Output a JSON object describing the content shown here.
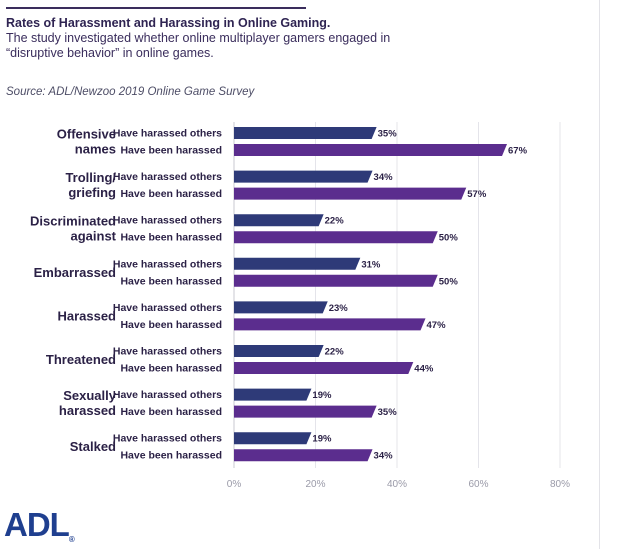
{
  "header": {
    "title": "Rates of Harassment and Harassing in Online Gaming.",
    "subtitle": "The study investigated whether online multiplayer gamers engaged in “disruptive behavior” in online games.",
    "source": "Source: ADL/Newzoo 2019 Online Game Survey"
  },
  "logo": {
    "text": "ADL",
    "reg": "®"
  },
  "colors": {
    "harassed_others": "#2e3a78",
    "been_harassed": "#5b2d8e",
    "grid": "#e4e4ea",
    "axis": "#c9c9d2"
  },
  "chart_data": {
    "type": "bar",
    "orientation": "horizontal",
    "title": "Rates of Harassment and Harassing in Online Gaming.",
    "categories": [
      [
        "Offensive",
        "names"
      ],
      [
        "Trolling/",
        "griefing"
      ],
      [
        "Discriminated",
        "against"
      ],
      [
        "Embarrassed"
      ],
      [
        "Harassed"
      ],
      [
        "Threatened"
      ],
      [
        "Sexually",
        "harassed"
      ],
      [
        "Stalked"
      ]
    ],
    "series": [
      {
        "name": "Have harassed others",
        "values": [
          35,
          34,
          22,
          31,
          23,
          22,
          19,
          19
        ]
      },
      {
        "name": "Have been harassed",
        "values": [
          67,
          57,
          50,
          50,
          47,
          44,
          35,
          34
        ]
      }
    ],
    "xlim": [
      0,
      80
    ],
    "xticks": [
      0,
      20,
      40,
      60,
      80
    ],
    "tick_suffix": "%",
    "grid": true
  }
}
